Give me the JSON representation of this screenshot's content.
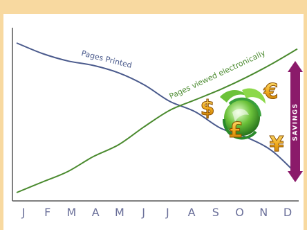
{
  "chart_data": {
    "type": "line",
    "categories": [
      "J",
      "F",
      "M",
      "A",
      "M",
      "J",
      "J",
      "A",
      "S",
      "O",
      "N",
      "D"
    ],
    "series": [
      {
        "name": "Pages Printed",
        "color": "#4a5a8c",
        "values": [
          100,
          93,
          88,
          85,
          80,
          72,
          61,
          54,
          43,
          37,
          28,
          12
        ]
      },
      {
        "name": "Pages viewed electronically",
        "color": "#4a8a2e",
        "values": [
          0,
          7,
          14,
          24,
          32,
          44,
          55,
          62,
          69,
          77,
          86,
          96
        ]
      }
    ],
    "annotation": {
      "text": "SAVINGS",
      "color": "#8b1a6a"
    },
    "icons": [
      "dollar-icon",
      "pound-icon",
      "euro-icon",
      "yen-icon",
      "recycle-globe-icon"
    ],
    "grid": false,
    "legend": "inline-labels",
    "ylim": [
      0,
      100
    ]
  },
  "colors": {
    "border": "#f8d9a0",
    "axis": "#555555",
    "tick_label": "#6a6f99"
  }
}
